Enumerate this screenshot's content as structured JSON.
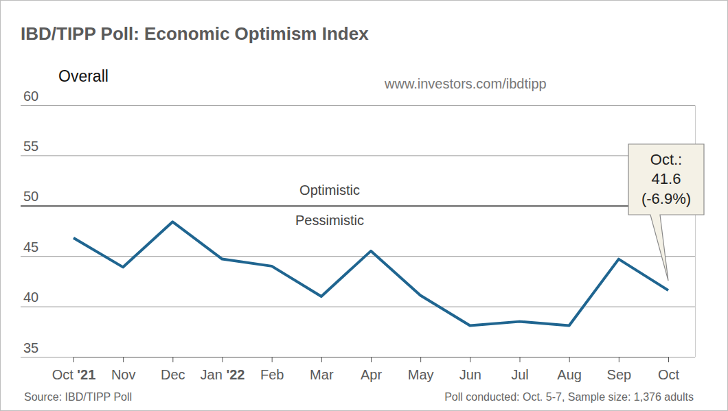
{
  "chart_data": {
    "type": "line",
    "title": "IBD/TIPP Poll: Economic Optimism Index",
    "subtitle": "Overall",
    "url": "www.investors.com/ibdtipp",
    "categories": [
      "Oct '21",
      "Nov",
      "Dec",
      "Jan '22",
      "Feb",
      "Mar",
      "Apr",
      "May",
      "Jun",
      "Jul",
      "Aug",
      "Sep",
      "Oct"
    ],
    "values": [
      46.8,
      43.9,
      48.4,
      44.7,
      44.0,
      41.0,
      45.5,
      41.1,
      38.1,
      38.5,
      38.1,
      44.7,
      41.6
    ],
    "color": "#1f6590",
    "ylim": [
      35,
      60
    ],
    "yticks": [
      35,
      40,
      45,
      50,
      55,
      60
    ],
    "grid": true,
    "zone_labels": {
      "threshold": 50,
      "above": "Optimistic",
      "below": "Pessimistic"
    },
    "annotation": {
      "label": "Oct.:",
      "value": 41.6,
      "change": "(-6.9%)"
    },
    "source": "Source: IBD/TIPP Poll",
    "note": "Poll conducted: Oct. 5-7, Sample size: 1,376 adults"
  }
}
